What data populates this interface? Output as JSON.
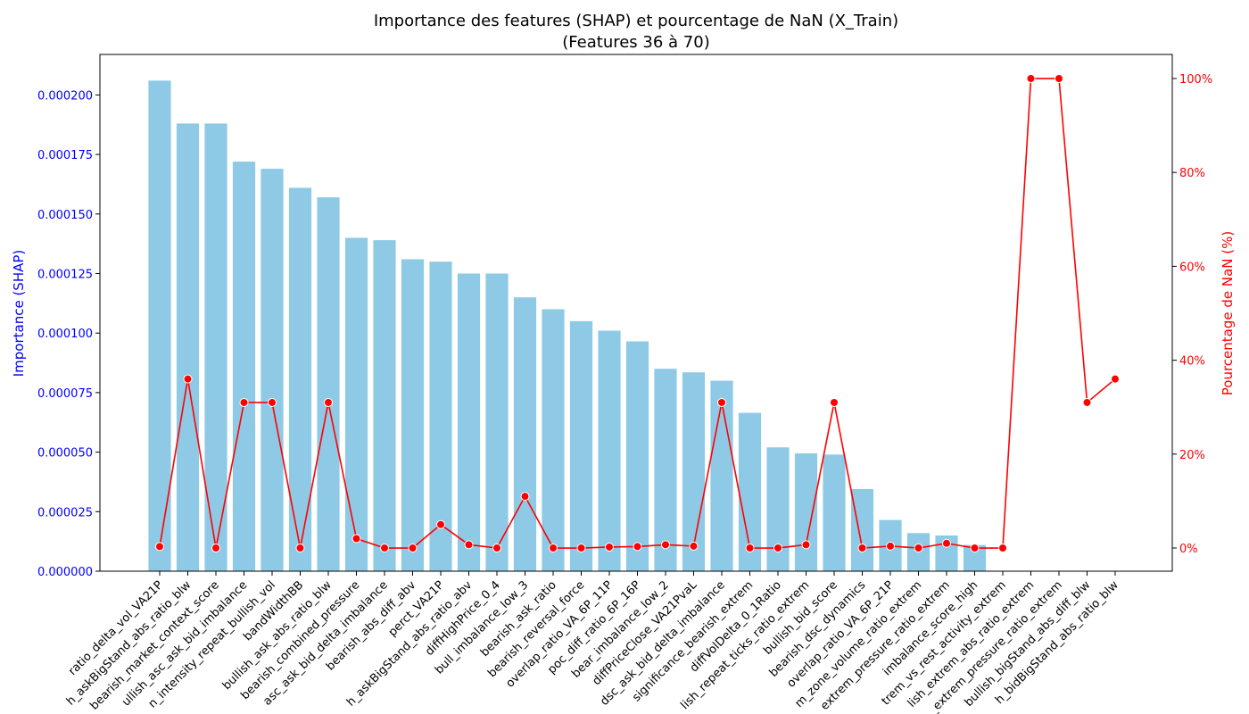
{
  "chart_data": {
    "type": "bar_line",
    "title": "Importance des features (SHAP) et pourcentage de NaN (X_Train)",
    "subtitle": "(Features 36 à 70)",
    "ylabel": "Importance (SHAP)",
    "y2label": "Pourcentage de NaN (%)",
    "categories": [
      "ratio_delta_vol_VA21P",
      "h_askBigStand_abs_ratio_blw",
      "bearish_market_context_score",
      "ullish_asc_ask_bid_imbalance",
      "n_intensity_repeat_bullish_vol",
      "bandWidthBB",
      "bullish_ask_abs_ratio_blw",
      "bearish_combined_pressure",
      "asc_ask_bid_delta_imbalance",
      "bearish_abs_diff_abv",
      "perct_VA21P",
      "h_askBigStand_abs_ratio_abv",
      "diffHighPrice_0_4",
      "bull_imbalance_low_3",
      "bearish_ask_ratio",
      "bearish_reversal_force",
      "overlap_ratio_VA_6P_11P",
      "poc_diff_ratio_6P_16P",
      "bear_imbalance_low_2",
      "diffPriceClose_VA21PvaL",
      "dsc_ask_bid_delta_imbalance",
      "significance_bearish_extrem",
      "diffVolDelta_0_1Ratio",
      "lish_repeat_ticks_ratio_extrem",
      "bullish_bid_score",
      "bearish_dsc_dynamics",
      "overlap_ratio_VA_6P_21P",
      "m_zone_volume_ratio_extrem",
      "extrem_pressure_ratio_extrem",
      "imbalance_score_high",
      "trem_vs_rest_activity_extrem",
      "lish_extrem_abs_ratio_extrem",
      "_extrem_pressure_ratio_extrem",
      "bullish_bigStand_abs_diff_blw",
      "h_bidBigStand_abs_ratio_blw"
    ],
    "series": [
      {
        "color": "#8ecae6",
        "values": [
          0.000206,
          0.000188,
          0.000188,
          0.000172,
          0.000169,
          0.000161,
          0.000157,
          0.00014,
          0.000139,
          0.000131,
          0.00013,
          0.000125,
          0.000125,
          0.000115,
          0.00011,
          0.000105,
          0.000101,
          9.65e-05,
          8.5e-05,
          8.35e-05,
          8e-05,
          6.65e-05,
          5.2e-05,
          4.95e-05,
          4.9e-05,
          3.45e-05,
          2.15e-05,
          1.6e-05,
          1.5e-05,
          1.1e-05,
          0,
          0,
          0,
          0,
          0
        ]
      },
      {
        "color": "#ff0000",
        "axis": "y2",
        "values": [
          0.3,
          36,
          0,
          31,
          31,
          0,
          31,
          2,
          0,
          0,
          5,
          0.7,
          0,
          11,
          0,
          0,
          0.2,
          0.3,
          0.7,
          0.4,
          31,
          0,
          0,
          0.7,
          31,
          0,
          0.4,
          0,
          1,
          0,
          0,
          100,
          100,
          31,
          36
        ]
      }
    ],
    "ylim": [
      0,
      0.000217
    ],
    "yticks": [
      {
        "value": 0,
        "label": "0.000000"
      },
      {
        "value": 2.5e-05,
        "label": "0.000025"
      },
      {
        "value": 5e-05,
        "label": "0.000050"
      },
      {
        "value": 7.5e-05,
        "label": "0.000075"
      },
      {
        "value": 0.0001,
        "label": "0.000100"
      },
      {
        "value": 0.000125,
        "label": "0.000125"
      },
      {
        "value": 0.00015,
        "label": "0.000150"
      },
      {
        "value": 0.000175,
        "label": "0.000175"
      },
      {
        "value": 0.0002,
        "label": "0.000200"
      }
    ],
    "y2lim": [
      -4.94,
      105.13
    ],
    "y2ticks": [
      {
        "value": 0,
        "label": "0%"
      },
      {
        "value": 20,
        "label": "20%"
      },
      {
        "value": 40,
        "label": "40%"
      },
      {
        "value": 60,
        "label": "60%"
      },
      {
        "value": 80,
        "label": "80%"
      },
      {
        "value": 100,
        "label": "100%"
      }
    ],
    "ycolor": "#0000ff",
    "y2color": "#ff0000"
  }
}
